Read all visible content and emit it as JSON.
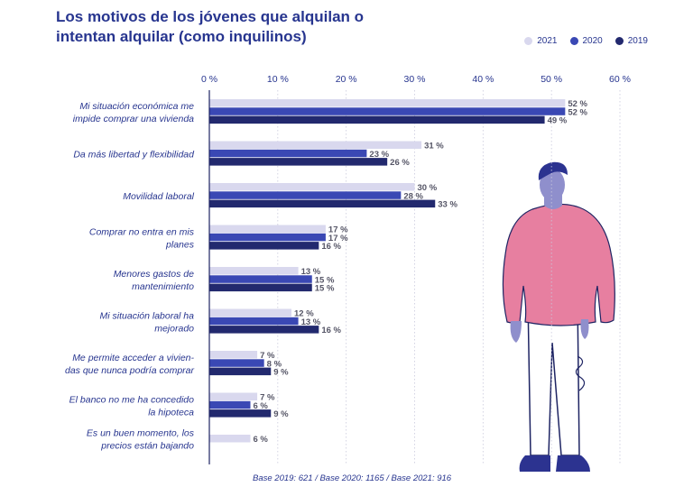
{
  "title_line1": "Los motivos de los jóvenes que alquilan o",
  "title_line2": "intentan alquilar (como inquilinos)",
  "footnote": "Base 2019: 621 / Base 2020: 1165 / Base 2021: 916",
  "colors": {
    "2021": "#d9d8ee",
    "2020": "#3a48b4",
    "2019": "#22296e",
    "text": "#27358f",
    "axis": "#1e2463"
  },
  "chart_data": {
    "type": "bar",
    "orientation": "horizontal",
    "categories": [
      [
        "Mi situación económica me",
        "impide comprar una vivienda"
      ],
      [
        "Da más libertad y flexibilidad"
      ],
      [
        "Movilidad laboral"
      ],
      [
        "Comprar no entra en mis",
        "planes"
      ],
      [
        "Menores gastos de",
        "mantenimiento"
      ],
      [
        "Mi situación laboral ha",
        "mejorado"
      ],
      [
        "Me permite acceder a  vivien-",
        "das que nunca podría comprar"
      ],
      [
        "El banco no me ha concedido",
        "la hipoteca"
      ],
      [
        "Es un buen momento, los",
        "precios están bajando"
      ]
    ],
    "series": [
      {
        "name": "2021",
        "values": [
          52,
          31,
          30,
          17,
          13,
          12,
          7,
          7,
          6
        ]
      },
      {
        "name": "2020",
        "values": [
          52,
          23,
          28,
          17,
          15,
          13,
          8,
          6,
          null
        ]
      },
      {
        "name": "2019",
        "values": [
          49,
          26,
          33,
          16,
          15,
          16,
          9,
          9,
          null
        ]
      }
    ],
    "xticks": [
      "0 %",
      "10 %",
      "20 %",
      "30 %",
      "40 %",
      "50 %",
      "60 %"
    ],
    "xlim": [
      0,
      60
    ],
    "legend_position": "top-right",
    "value_suffix": " %"
  }
}
